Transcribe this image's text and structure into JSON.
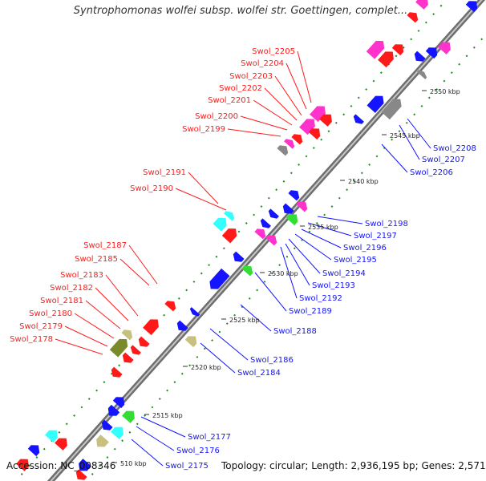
{
  "title": "Syntrophomonas wolfei subsp. wolfei str. Goettingen, complet...",
  "footer": {
    "accession": "Accession: NC_008346",
    "summary": "Topology: circular; Length: 2,936,195 bp; Genes: 2,571"
  },
  "colors": {
    "backbone": "#8a8a8a",
    "dots": "#1e8a1e",
    "red": "#ff1a1a",
    "blue": "#1414ff",
    "magenta": "#ff33cc",
    "gray": "#888888",
    "cyan": "#33ffff",
    "green": "#33dd33",
    "olive": "#7a8a2a",
    "khaki": "#c8c080"
  },
  "ticks": [
    "510 kbp",
    "2515 kbp",
    "2520 kbp",
    "2525 kbp",
    "2530 kbp",
    "2535 kbp",
    "2540 kbp",
    "2545 kbp",
    "2550 kbp"
  ],
  "red_labels": [
    "Swol_2205",
    "Swol_2204",
    "Swol_2203",
    "Swol_2202",
    "Swol_2201",
    "Swol_2200",
    "Swol_2199",
    "Swol_2191",
    "Swol_2190",
    "Swol_2187",
    "Swol_2185",
    "Swol_2183",
    "Swol_2182",
    "Swol_2181",
    "Swol_2180",
    "Swol_2179",
    "Swol_2178"
  ],
  "blue_labels": [
    "Swol_2208",
    "Swol_2207",
    "Swol_2206",
    "Swol_2198",
    "Swol_2197",
    "Swol_2196",
    "Swol_2195",
    "Swol_2194",
    "Swol_2193",
    "Swol_2192",
    "Swol_2189",
    "Swol_2188",
    "Swol_2186",
    "Swol_2184",
    "Swol_2177",
    "Swol_2176",
    "Swol_2175"
  ]
}
